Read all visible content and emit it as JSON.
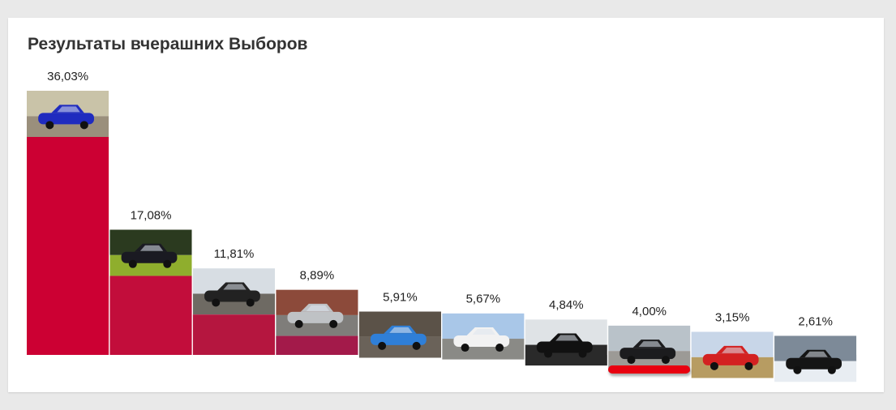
{
  "chart_data": {
    "type": "bar",
    "title": "Результаты вчерашних Выборов",
    "categories": [
      "",
      "",
      "",
      "",
      "",
      "",
      "",
      "",
      "",
      ""
    ],
    "values": [
      36.03,
      17.08,
      11.81,
      8.89,
      5.91,
      5.67,
      4.84,
      4.0,
      3.15,
      2.61
    ],
    "value_labels": [
      "36,03%",
      "17,08%",
      "11,81%",
      "8,89%",
      "5,91%",
      "5,67%",
      "4,84%",
      "4,00%",
      "3,15%",
      "2,61%"
    ],
    "bar_colors": [
      "#cc0033",
      "#c20d3b",
      "#b5163f",
      "#a31a4a",
      "#8e2456",
      "#7e2a63",
      "#64306f",
      "#4b3778",
      "#2f4088",
      "#264a92"
    ],
    "photos": [
      {
        "scene": "blue-sports-car",
        "sky": "#c9c3a8",
        "ground": "#9a8f7c",
        "car": "#1f2bbf"
      },
      {
        "scene": "dark-sedan-green",
        "sky": "#2b3a1f",
        "ground": "#8fae2d",
        "car": "#1a1a22"
      },
      {
        "scene": "black-hatchback-city",
        "sky": "#d7dde3",
        "ground": "#6e6a63",
        "car": "#222222"
      },
      {
        "scene": "silver-sedan",
        "sky": "#8c4a3a",
        "ground": "#7f7d7a",
        "car": "#bfc2c5"
      },
      {
        "scene": "blue-car-garage",
        "sky": "#5b5248",
        "ground": "#6a6259",
        "car": "#2f7fd8"
      },
      {
        "scene": "white-sedan-person",
        "sky": "#a9c7e8",
        "ground": "#8a8a86",
        "car": "#f2f2f2"
      },
      {
        "scene": "black-car-front",
        "sky": "#dfe3e6",
        "ground": "#2a2a2a",
        "car": "#111111"
      },
      {
        "scene": "black-van-yard",
        "sky": "#b9c2c9",
        "ground": "#9c9a96",
        "car": "#1c1c1e"
      },
      {
        "scene": "red-hatchback-field",
        "sky": "#c8d6e8",
        "ground": "#b79c62",
        "car": "#d32121"
      },
      {
        "scene": "black-car-snow",
        "sky": "#7d8a98",
        "ground": "#e8edf2",
        "car": "#151515"
      }
    ],
    "ylim": [
      0,
      36.03
    ],
    "xlabel": "",
    "ylabel": "",
    "grid": false,
    "legend": "none",
    "highlight_index": 7,
    "highlight_color": "#e8000f"
  }
}
